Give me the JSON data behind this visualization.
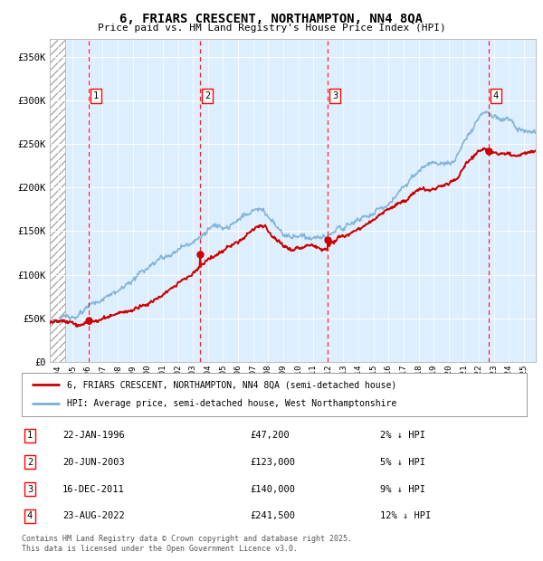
{
  "title": "6, FRIARS CRESCENT, NORTHAMPTON, NN4 8QA",
  "subtitle": "Price paid vs. HM Land Registry's House Price Index (HPI)",
  "legend_red": "6, FRIARS CRESCENT, NORTHAMPTON, NN4 8QA (semi-detached house)",
  "legend_blue": "HPI: Average price, semi-detached house, West Northamptonshire",
  "footer": "Contains HM Land Registry data © Crown copyright and database right 2025.\nThis data is licensed under the Open Government Licence v3.0.",
  "transactions": [
    {
      "num": 1,
      "date": "22-JAN-1996",
      "price": 47200,
      "pct": "2% ↓ HPI",
      "year": 1996.06
    },
    {
      "num": 2,
      "date": "20-JUN-2003",
      "price": 123000,
      "pct": "5% ↓ HPI",
      "year": 2003.47
    },
    {
      "num": 3,
      "date": "16-DEC-2011",
      "price": 140000,
      "pct": "9% ↓ HPI",
      "year": 2011.96
    },
    {
      "num": 4,
      "date": "23-AUG-2022",
      "price": 241500,
      "pct": "12% ↓ HPI",
      "year": 2022.65
    }
  ],
  "hpi_color": "#7bafd4",
  "price_color": "#cc0000",
  "background_plot": "#ddeeff",
  "ylim": [
    0,
    370000
  ],
  "xlim_start": 1993.5,
  "xlim_end": 2025.8,
  "yticks": [
    0,
    50000,
    100000,
    150000,
    200000,
    250000,
    300000,
    350000
  ],
  "ytick_labels": [
    "£0",
    "£50K",
    "£100K",
    "£150K",
    "£200K",
    "£250K",
    "£300K",
    "£350K"
  ],
  "xticks": [
    1994,
    1995,
    1996,
    1997,
    1998,
    1999,
    2000,
    2001,
    2002,
    2003,
    2004,
    2005,
    2006,
    2007,
    2008,
    2009,
    2010,
    2011,
    2012,
    2013,
    2014,
    2015,
    2016,
    2017,
    2018,
    2019,
    2020,
    2021,
    2022,
    2023,
    2024,
    2025
  ]
}
